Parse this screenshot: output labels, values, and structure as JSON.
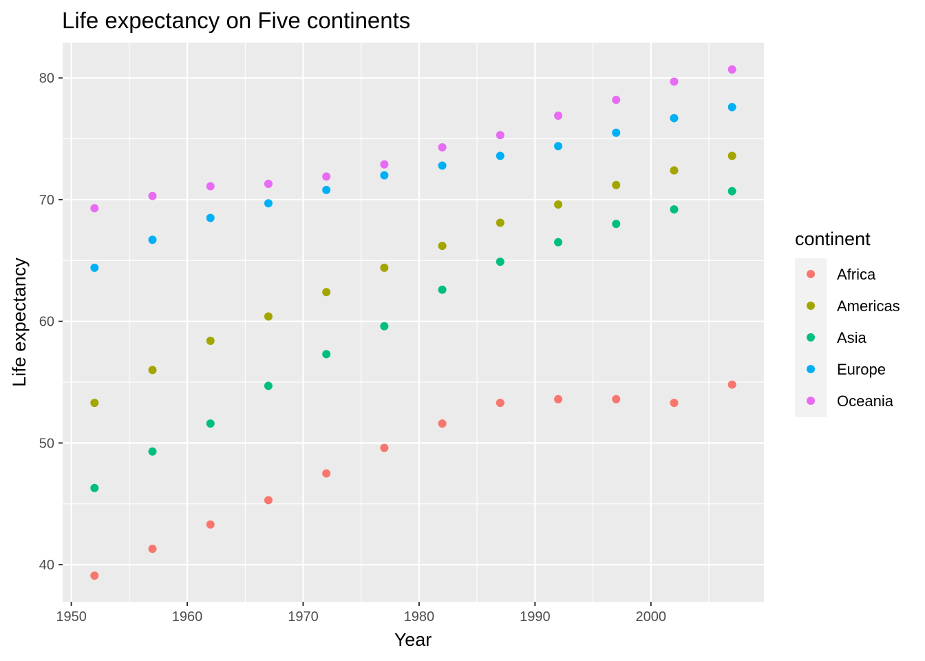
{
  "chart_data": {
    "type": "scatter",
    "title": "Life expectancy on Five continents",
    "xlabel": "Year",
    "ylabel": "Life expectancy",
    "xlim": [
      1949.25,
      2009.75
    ],
    "ylim": [
      36.95,
      82.9
    ],
    "x_ticks": [
      1950,
      1960,
      1970,
      1980,
      1990,
      2000
    ],
    "y_ticks": [
      40,
      50,
      60,
      70,
      80
    ],
    "grid": true,
    "legend": {
      "title": "continent",
      "position": "right"
    },
    "x": [
      1952,
      1957,
      1962,
      1967,
      1972,
      1977,
      1982,
      1987,
      1992,
      1997,
      2002,
      2007
    ],
    "series": [
      {
        "name": "Africa",
        "color": "#F8766D",
        "values": [
          39.1,
          41.3,
          43.3,
          45.3,
          47.5,
          49.6,
          51.6,
          53.3,
          53.6,
          53.6,
          53.3,
          54.8
        ]
      },
      {
        "name": "Americas",
        "color": "#A3A500",
        "values": [
          53.3,
          56.0,
          58.4,
          60.4,
          62.4,
          64.4,
          66.2,
          68.1,
          69.6,
          71.2,
          72.4,
          73.6
        ]
      },
      {
        "name": "Asia",
        "color": "#00BF7D",
        "values": [
          46.3,
          49.3,
          51.6,
          54.7,
          57.3,
          59.6,
          62.6,
          64.9,
          66.5,
          68.0,
          69.2,
          70.7
        ]
      },
      {
        "name": "Europe",
        "color": "#00B0F6",
        "values": [
          64.4,
          66.7,
          68.5,
          69.7,
          70.8,
          72.0,
          72.8,
          73.6,
          74.4,
          75.5,
          76.7,
          77.6
        ]
      },
      {
        "name": "Oceania",
        "color": "#E76BF3",
        "values": [
          69.3,
          70.3,
          71.1,
          71.3,
          71.9,
          72.9,
          74.3,
          75.3,
          76.9,
          78.2,
          79.7,
          80.7
        ]
      }
    ]
  }
}
